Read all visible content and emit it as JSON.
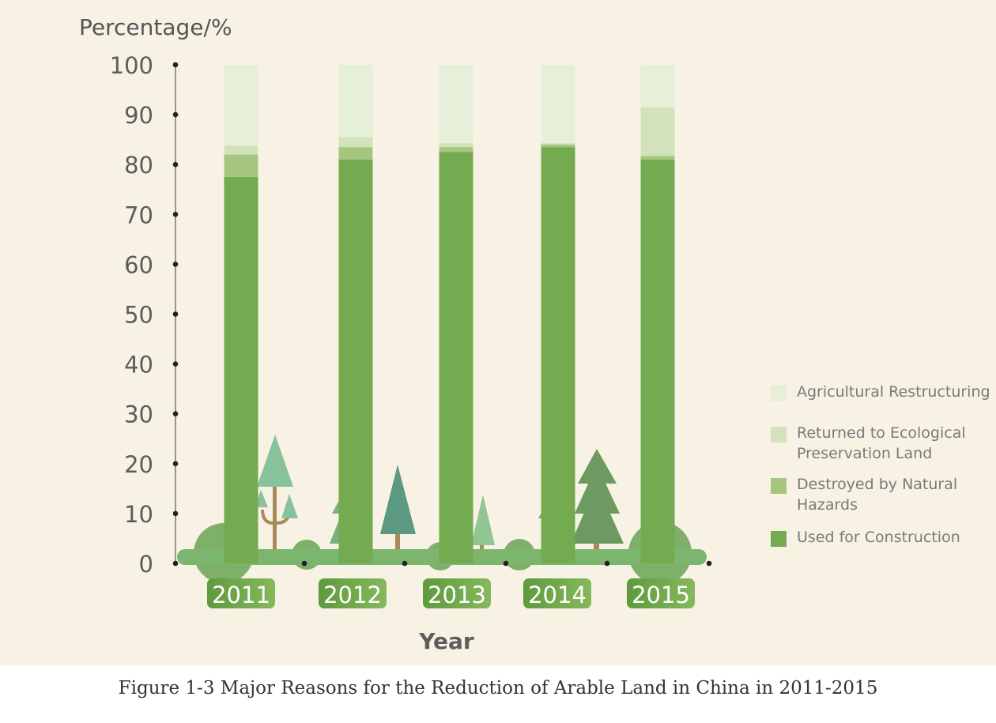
{
  "chart_data": {
    "type": "bar",
    "stacked": true,
    "ylabel": "Percentage/%",
    "xlabel": "Year",
    "ylim": [
      0,
      100
    ],
    "yticks": [
      "0",
      "10",
      "20",
      "30",
      "40",
      "50",
      "60",
      "70",
      "80",
      "90",
      "100"
    ],
    "categories": [
      "2011",
      "2012",
      "2013",
      "2014",
      "2015"
    ],
    "series": [
      {
        "name": "Used for Construction",
        "color": "#74aa50",
        "values": [
          77.5,
          81,
          82.5,
          83.5,
          81
        ]
      },
      {
        "name": "Destroyed by Natural Hazards",
        "color": "#a6c57e",
        "values": [
          4.5,
          2.5,
          1,
          0.5,
          0.7
        ]
      },
      {
        "name": "Returned to Ecological Preservation Land",
        "color": "#d2e2bb",
        "values": [
          1.8,
          2,
          0.8,
          0.3,
          9.8
        ]
      },
      {
        "name": "Agricultural Restructuring",
        "color": "#e6efd9",
        "values": [
          16.2,
          14.5,
          15.7,
          15.7,
          8.5
        ]
      }
    ],
    "legend_position": "right",
    "grid": false
  },
  "legend": [
    {
      "label": "Agricultural Restructuring",
      "color": "#e6efd9"
    },
    {
      "label": "Returned to Ecological\nPreservation Land",
      "color": "#d2e2bb"
    },
    {
      "label": "Destroyed by Natural\nHazards",
      "color": "#a6c57e"
    },
    {
      "label": "Used for Construction",
      "color": "#74aa50"
    }
  ],
  "caption": "Figure 1-3 Major Reasons for the Reduction of Arable Land in China in 2011-2015"
}
